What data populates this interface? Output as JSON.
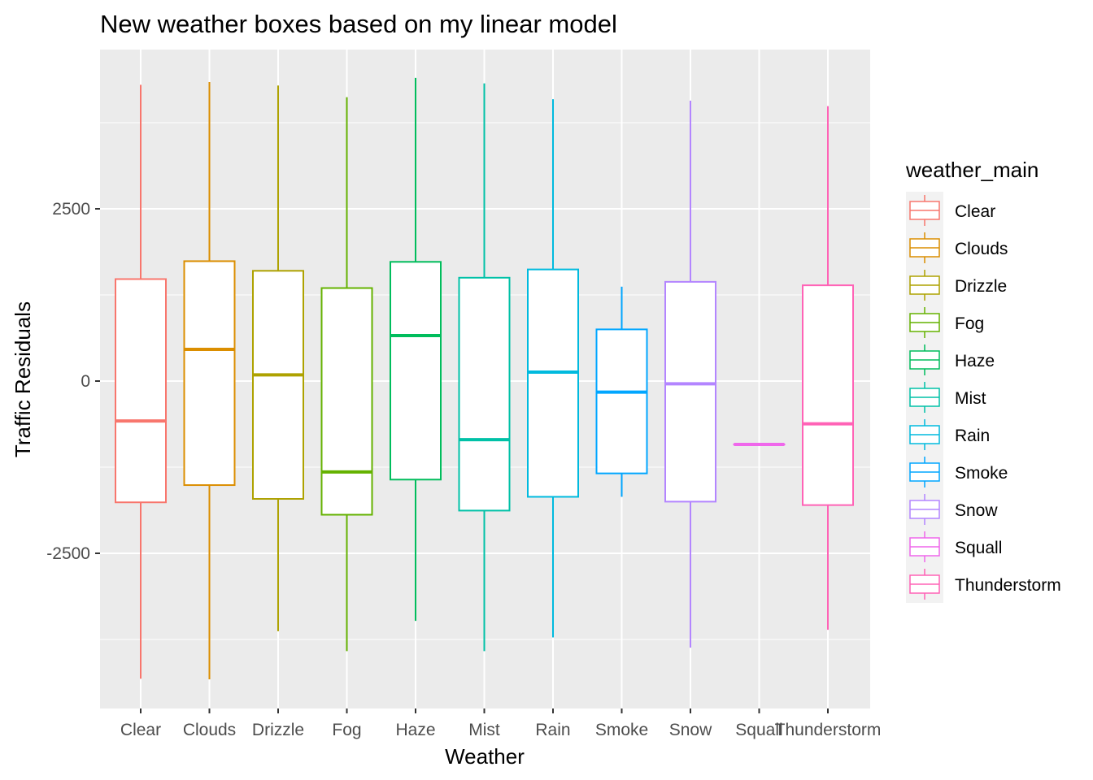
{
  "chart_data": {
    "type": "box",
    "title": "New weather boxes based on my linear model",
    "xlabel": "Weather",
    "ylabel": "Traffic Residuals",
    "ylim": [
      -4800,
      4800
    ],
    "yticks": [
      -2500,
      0,
      2500
    ],
    "ytick_labels": [
      "-2500",
      "0",
      "2500"
    ],
    "grid": true,
    "legend": {
      "title": "weather_main",
      "position": "right"
    },
    "categories": [
      "Clear",
      "Clouds",
      "Drizzle",
      "Fog",
      "Haze",
      "Mist",
      "Rain",
      "Smoke",
      "Snow",
      "Squall",
      "Thunderstorm"
    ],
    "series": [
      {
        "name": "Clear",
        "color": "#F8766D",
        "min": -4320,
        "q1": -1760,
        "median": -580,
        "q3": 1480,
        "max": 4300
      },
      {
        "name": "Clouds",
        "color": "#DB8E00",
        "min": -4330,
        "q1": -1510,
        "median": 460,
        "q3": 1740,
        "max": 4340
      },
      {
        "name": "Drizzle",
        "color": "#AEA200",
        "min": -3630,
        "q1": -1710,
        "median": 90,
        "q3": 1600,
        "max": 4290
      },
      {
        "name": "Fog",
        "color": "#64B200",
        "min": -3920,
        "q1": -1940,
        "median": -1320,
        "q3": 1350,
        "max": 4120
      },
      {
        "name": "Haze",
        "color": "#00BD5C",
        "min": -3480,
        "q1": -1430,
        "median": 660,
        "q3": 1730,
        "max": 4400
      },
      {
        "name": "Mist",
        "color": "#00C1A7",
        "min": -3920,
        "q1": -1880,
        "median": -850,
        "q3": 1500,
        "max": 4320
      },
      {
        "name": "Rain",
        "color": "#00BADE",
        "min": -3720,
        "q1": -1680,
        "median": 130,
        "q3": 1620,
        "max": 4090
      },
      {
        "name": "Smoke",
        "color": "#00A6FF",
        "min": -1680,
        "q1": -1340,
        "median": -160,
        "q3": 750,
        "max": 1370
      },
      {
        "name": "Snow",
        "color": "#B385FF",
        "min": -3870,
        "q1": -1750,
        "median": -40,
        "q3": 1440,
        "max": 4070
      },
      {
        "name": "Squall",
        "color": "#EF67EB",
        "min": -920,
        "q1": -920,
        "median": -920,
        "q3": -920,
        "max": -920
      },
      {
        "name": "Thunderstorm",
        "color": "#FF63B6",
        "min": -3610,
        "q1": -1800,
        "median": -620,
        "q3": 1390,
        "max": 3990
      }
    ]
  }
}
